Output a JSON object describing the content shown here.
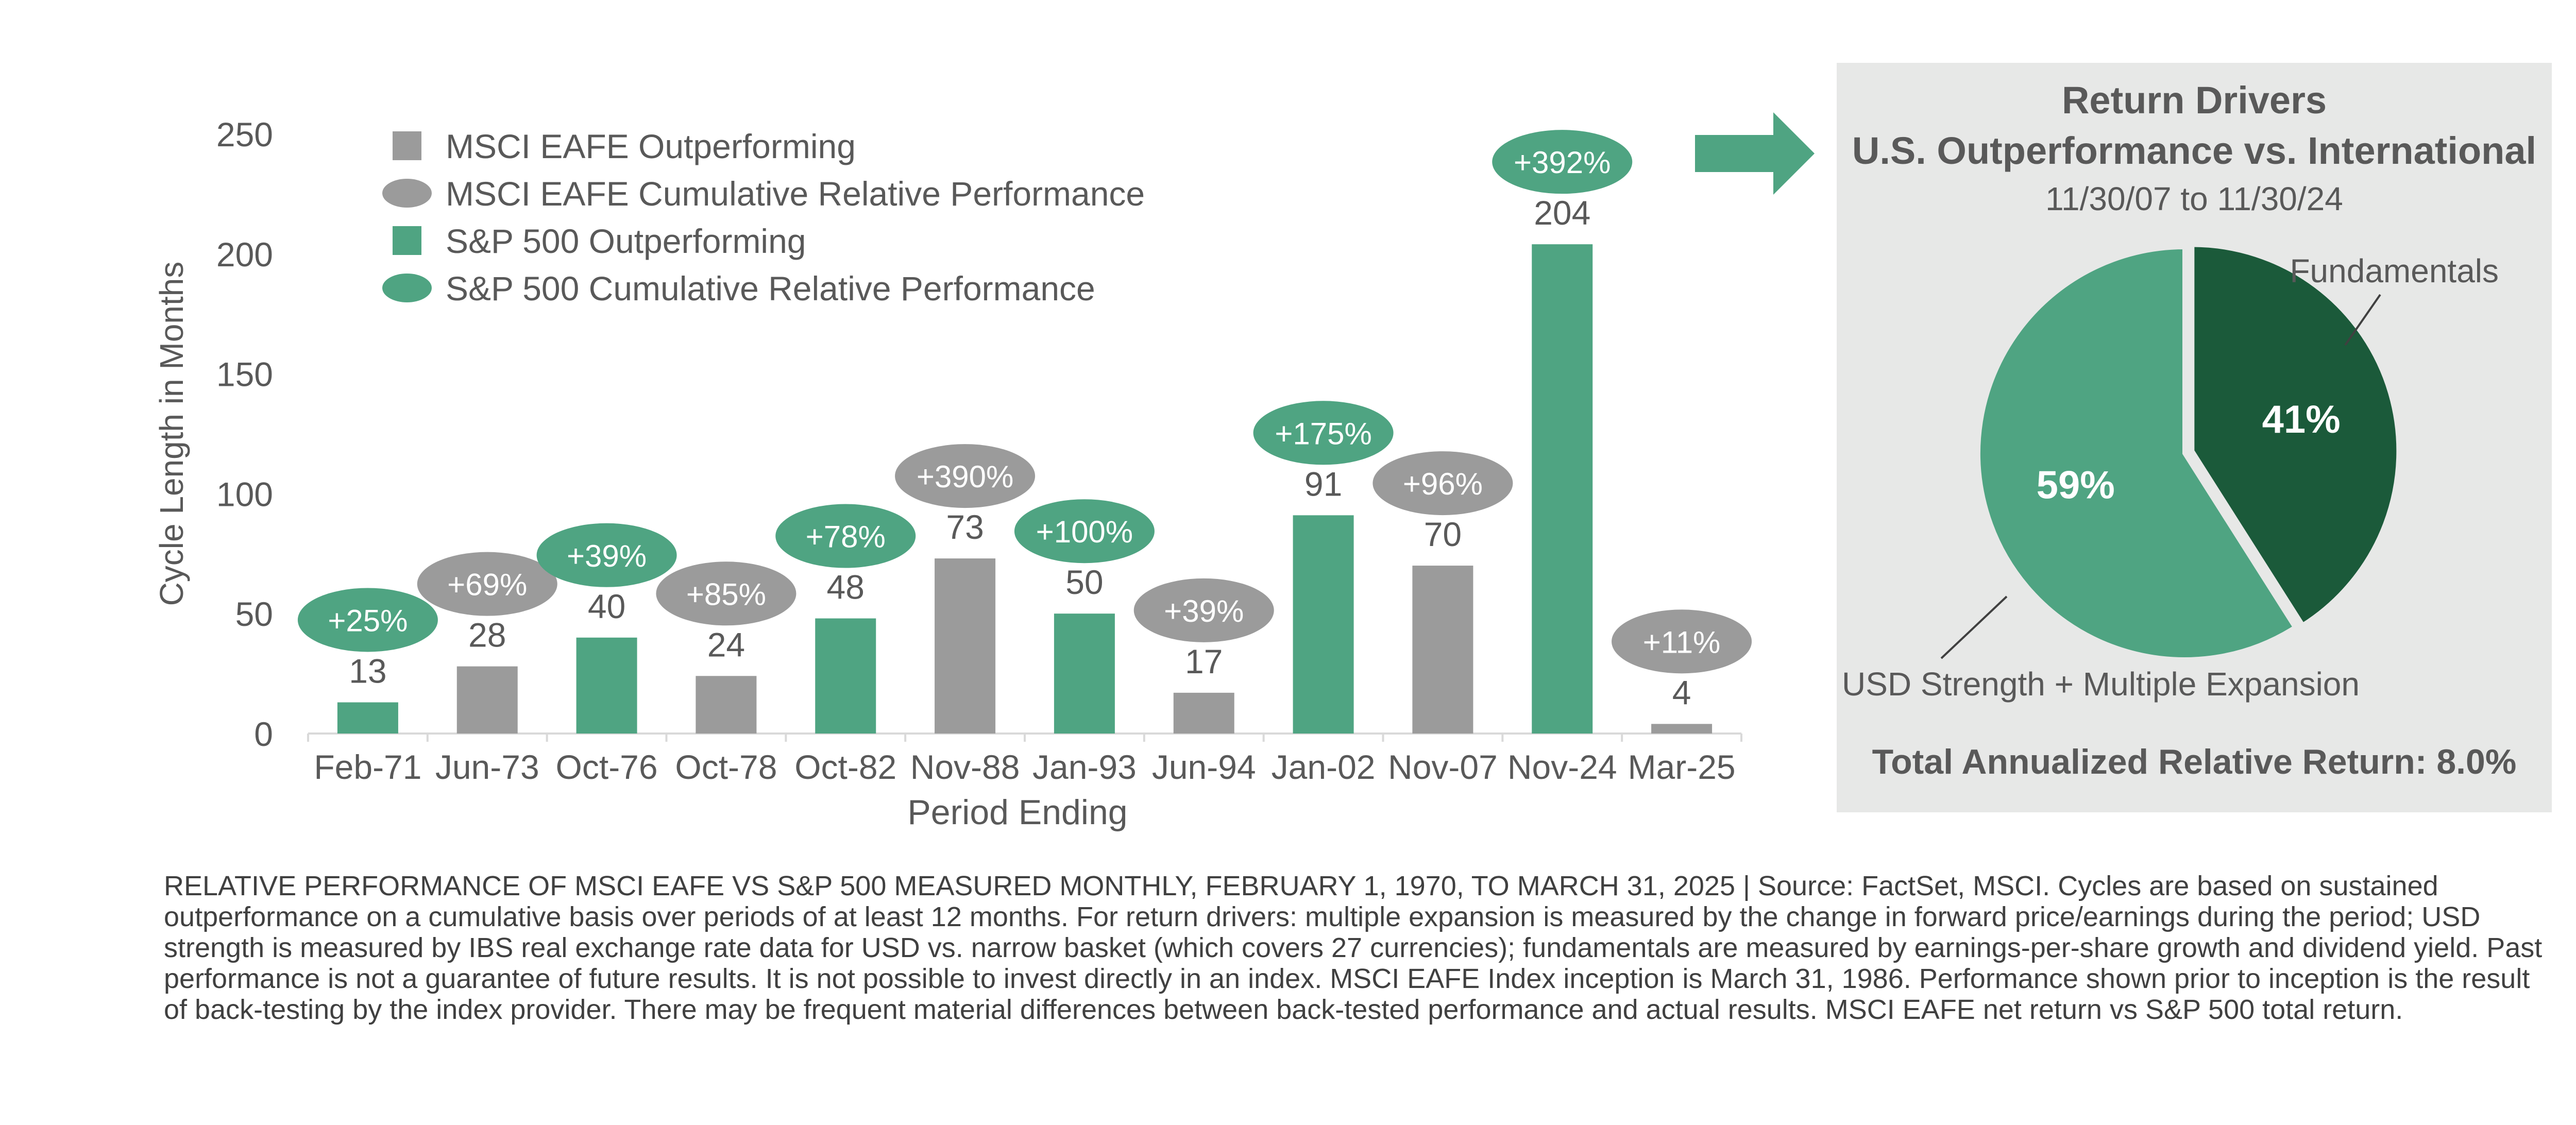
{
  "colors": {
    "green": "#4fa482",
    "gray": "#9b9b9b",
    "dark_green": "#1b5a3a",
    "panel_bg": "#e7e8e7",
    "text": "#595959",
    "white": "#ffffff"
  },
  "chart_data": [
    {
      "type": "bar",
      "title": "",
      "xlabel": "Period Ending",
      "ylabel": "Cycle Length in Months",
      "ylim": [
        0,
        250
      ],
      "yticks": [
        "0",
        "50",
        "100",
        "150",
        "200",
        "250"
      ],
      "categories": [
        "Feb-71",
        "Jun-73",
        "Oct-76",
        "Oct-78",
        "Oct-82",
        "Nov-88",
        "Jan-93",
        "Jun-94",
        "Jan-02",
        "Nov-07",
        "Nov-24",
        "Mar-25"
      ],
      "values": [
        13,
        28,
        40,
        24,
        48,
        73,
        50,
        17,
        91,
        70,
        204,
        4
      ],
      "value_labels": [
        "13",
        "28",
        "40",
        "24",
        "48",
        "73",
        "50",
        "17",
        "91",
        "70",
        "204",
        "4"
      ],
      "leader": [
        "sp500",
        "eafe",
        "sp500",
        "eafe",
        "sp500",
        "eafe",
        "sp500",
        "eafe",
        "sp500",
        "eafe",
        "sp500",
        "eafe"
      ],
      "cumulative_relative_performance": [
        "+25%",
        "+69%",
        "+39%",
        "+85%",
        "+78%",
        "+390%",
        "+100%",
        "+39%",
        "+175%",
        "+96%",
        "+392%",
        "+11%"
      ],
      "series": [
        {
          "name": "MSCI EAFE Outperforming",
          "key": "eafe"
        },
        {
          "name": "S&P 500 Outperforming",
          "key": "sp500"
        }
      ],
      "legend": {
        "position": "top-left",
        "entries": [
          {
            "label": "MSCI EAFE Outperforming",
            "shape": "square",
            "color": "#9b9b9b"
          },
          {
            "label": "MSCI EAFE Cumulative Relative Performance",
            "shape": "ellipse",
            "color": "#9b9b9b"
          },
          {
            "label": "S&P 500 Outperforming",
            "shape": "square",
            "color": "#4fa482"
          },
          {
            "label": "S&P 500 Cumulative Relative Performance",
            "shape": "ellipse",
            "color": "#4fa482"
          }
        ]
      }
    },
    {
      "type": "pie",
      "title_line1": "Return Drivers",
      "title_line2": "U.S. Outperformance vs. International",
      "subtitle": "11/30/07 to 11/30/24",
      "slices": [
        {
          "label": "Fundamentals",
          "value": 41,
          "value_label": "41%",
          "color": "#1b5a3a"
        },
        {
          "label": "USD Strength + Multiple Expansion",
          "value": 59,
          "value_label": "59%",
          "color": "#4fa482"
        }
      ],
      "total": "Total Annualized Relative Return: 8.0%"
    }
  ],
  "footnote": "RELATIVE PERFORMANCE OF MSCI EAFE VS S&P 500 MEASURED MONTHLY, FEBRUARY 1, 1970, TO MARCH 31, 2025 | Source: FactSet, MSCI. Cycles are based on sustained outperformance on a cumulative basis over periods of at least 12 months. For return drivers: multiple expansion is measured by the change in forward price/earnings during the period; USD strength is measured by IBS real exchange rate data for USD vs. narrow basket (which covers 27 currencies); fundamentals are measured by earnings-per-share growth and dividend yield. Past performance is not a guarantee of future results. It is not possible to invest directly in an index. MSCI EAFE Index inception is March 31, 1986. Performance shown prior to inception is the result of back-testing by the index provider. There may be frequent material differences between back-tested performance and actual results. MSCI EAFE net return vs S&P 500 total return."
}
